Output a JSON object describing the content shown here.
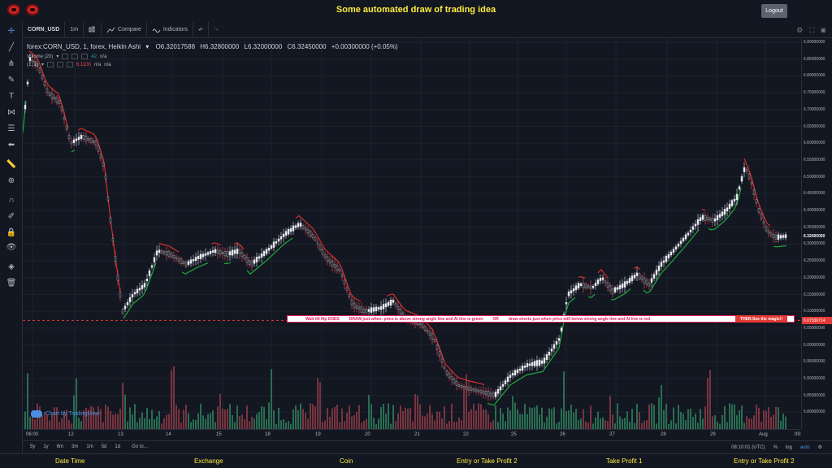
{
  "header": {
    "title": "Some automated draw of trading idea",
    "logout_label": "Logout"
  },
  "toolbar": {
    "symbol": "CORN_USD",
    "interval": "1m",
    "compare_label": "Compare",
    "indicators_label": "Indicators"
  },
  "legend": {
    "title": "forex:CORN_USD, 1, forex, Heikin Ashi",
    "open": "O6.32017588",
    "high": "H6.32800000",
    "low": "L6.32000000",
    "close": "C6.32450000",
    "change": "+0.00300000 (+0.05%)",
    "volume_label": "Volume (20)",
    "volume_value": "42",
    "volume_na": "n/a",
    "ind_label": "(1, 1)",
    "ind_value": "6.1100",
    "ind_na1": "n/a",
    "ind_na2": "n/a"
  },
  "price_axis": {
    "labels": [
      "6.90000000",
      "6.85000000",
      "6.80000000",
      "6.75000000",
      "6.70000000",
      "6.65000000",
      "6.60000000",
      "6.55000000",
      "6.50000000",
      "6.45000000",
      "6.40000000",
      "6.35000000",
      "6.30000000",
      "6.25000000",
      "6.20000000",
      "6.15000000",
      "6.10000000",
      "6.05000000",
      "6.00000000",
      "5.95000000",
      "5.90000000",
      "5.85000000",
      "5.80000000"
    ],
    "current_price": "6.32400050",
    "line_price": "6.07336714"
  },
  "time_axis": {
    "labels": [
      "06:00",
      "12",
      "13",
      "14",
      "15",
      "18",
      "19",
      "20",
      "21",
      "22",
      "25",
      "26",
      "27",
      "28",
      "29",
      "Aug",
      "09:"
    ]
  },
  "banner": {
    "part1": "Wait till flip ENDS",
    "part2": "DRAW just when: price is above strong angle line and AI line is green",
    "part3": "OR",
    "part4": "draw shorts just when price still below strong angle line and AI line is red",
    "part5": "THEN See the magic!!"
  },
  "watermark": "Chart by TradingView",
  "bottombar": {
    "ranges": [
      "5y",
      "1y",
      "6m",
      "3m",
      "1m",
      "5d",
      "1d"
    ],
    "goto": "Go to...",
    "time": "08:10:01 (UTC)",
    "pct": "%",
    "log": "log",
    "auto": "auto"
  },
  "footer": {
    "cols": [
      "Date Time",
      "Exchange",
      "Coin",
      "Entry or Take Profit 2",
      "Take Profit 1",
      "Entry or Take Profit 2"
    ]
  },
  "colors": {
    "up": "#26a69a",
    "down": "#ef5350",
    "accent": "#ffeb3b",
    "green_line": "#1faa3a",
    "red_line": "#d32f2f"
  }
}
